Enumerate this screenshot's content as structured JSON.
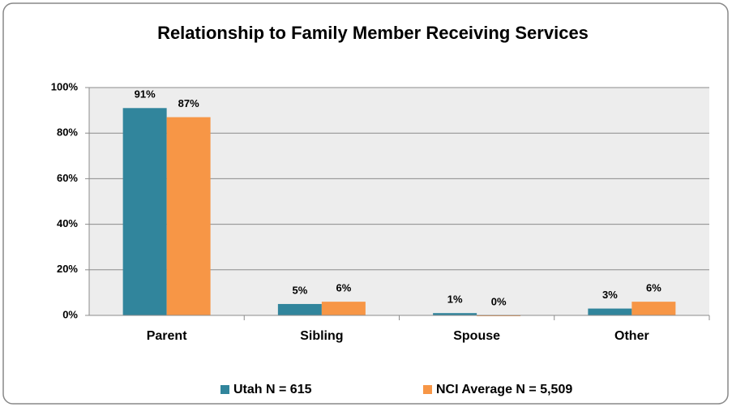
{
  "chart_data": {
    "type": "bar",
    "title": "Relationship to Family Member Receiving Services",
    "categories": [
      "Parent",
      "Sibling",
      "Spouse",
      "Other"
    ],
    "series": [
      {
        "name": "Utah N = 615",
        "color": "#31859c",
        "values": [
          91,
          5,
          1,
          3
        ],
        "value_labels": [
          "91%",
          "5%",
          "1%",
          "3%"
        ]
      },
      {
        "name": "NCI Average N = 5,509",
        "color": "#f79646",
        "values": [
          87,
          6,
          0,
          6
        ],
        "value_labels": [
          "87%",
          "6%",
          "0%",
          "6%"
        ]
      }
    ],
    "ylim": [
      0,
      100
    ],
    "yticks": [
      {
        "value": 0,
        "label": "0%"
      },
      {
        "value": 20,
        "label": "20%"
      },
      {
        "value": 40,
        "label": "40%"
      },
      {
        "value": 60,
        "label": "60%"
      },
      {
        "value": 80,
        "label": "80%"
      },
      {
        "value": 100,
        "label": "100%"
      }
    ],
    "grid": true,
    "legend": "bottom"
  }
}
